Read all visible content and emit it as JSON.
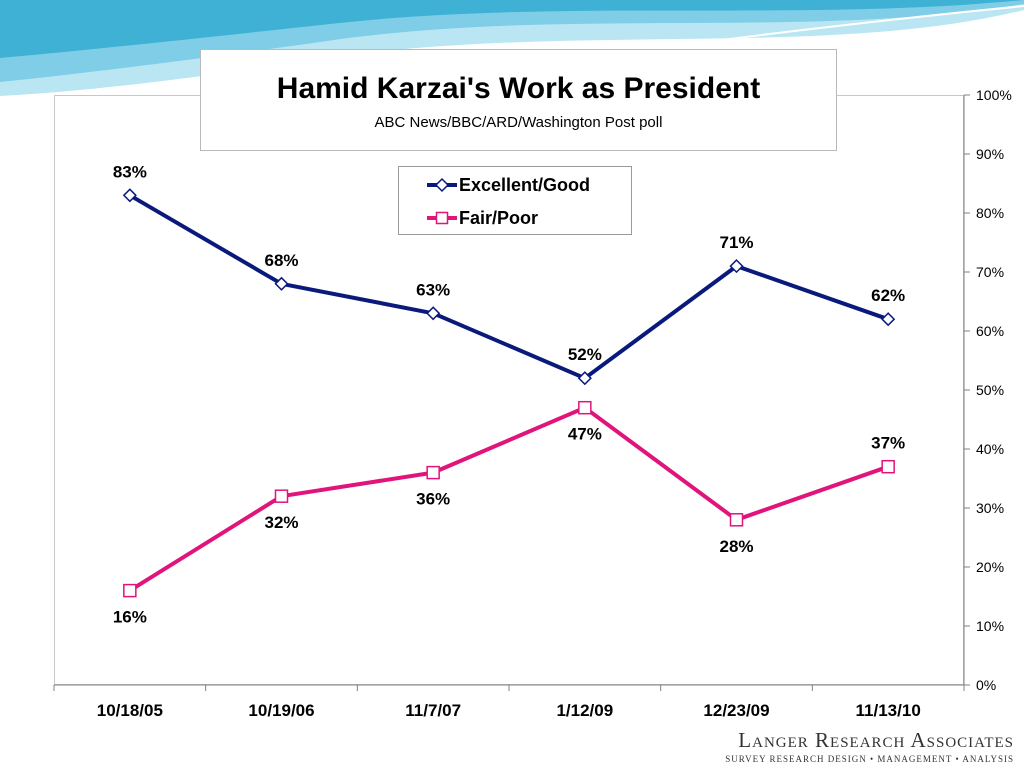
{
  "chart_data": {
    "type": "line",
    "title": "Hamid Karzai's Work as President",
    "subtitle": "ABC News/BBC/ARD/Washington Post poll",
    "categories": [
      "10/18/05",
      "10/19/06",
      "11/7/07",
      "1/12/09",
      "12/23/09",
      "11/13/10"
    ],
    "series": [
      {
        "name": "Excellent/Good",
        "values": [
          83,
          68,
          63,
          52,
          71,
          62
        ],
        "labels": [
          "83%",
          "68%",
          "63%",
          "52%",
          "71%",
          "62%"
        ],
        "color": "#0a1a7c",
        "marker": "diamond"
      },
      {
        "name": "Fair/Poor",
        "values": [
          16,
          32,
          36,
          47,
          28,
          37
        ],
        "labels": [
          "16%",
          "32%",
          "36%",
          "47%",
          "28%",
          "37%"
        ],
        "color": "#e0147a",
        "marker": "square"
      }
    ],
    "y_axis": {
      "side": "right",
      "min": 0,
      "max": 100,
      "step": 10,
      "tick_labels": [
        "0%",
        "10%",
        "20%",
        "30%",
        "40%",
        "50%",
        "60%",
        "70%",
        "80%",
        "90%",
        "100%"
      ]
    },
    "grid": false,
    "legend_position": "top-center"
  },
  "footer": {
    "brand": "Langer Research Associates",
    "tagline": "SURVEY RESEARCH DESIGN • MANAGEMENT • ANALYSIS"
  },
  "colors": {
    "wave_light": "#b9e6f2",
    "wave_mid": "#7fcde6",
    "wave_dark": "#3eb1d4"
  }
}
